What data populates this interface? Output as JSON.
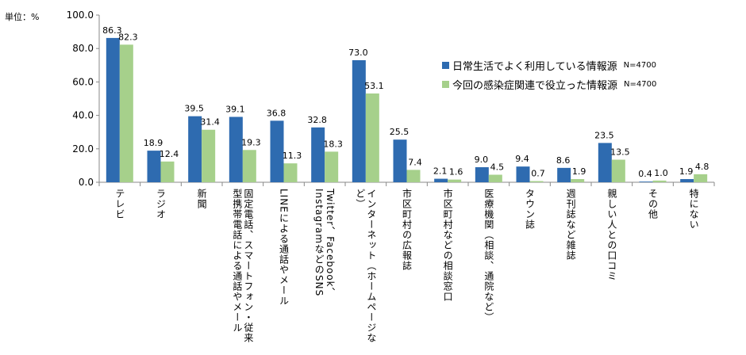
{
  "unit_label": "単位：%",
  "chart_data": {
    "type": "bar",
    "categories": [
      "テレビ",
      "ラジオ",
      "新聞",
      "固定電話、スマートフォン・従来型携帯電話による通話やメール",
      "LINEによる通話やメール",
      "Twitter、Facebook、InstagramなどのSNS",
      "インターネット（ホームページなど）",
      "市区町村の広報誌",
      "市区町村などの相談窓口",
      "医療機関（相談、通院など）",
      "タウン誌",
      "週刊誌など雑誌",
      "親しい人との口コミ",
      "その他",
      "特にない"
    ],
    "series": [
      {
        "name": "日常生活でよく利用している情報源",
        "n_label": "N=4700",
        "color": "#2e6bb0",
        "values": [
          86.3,
          18.9,
          39.5,
          39.1,
          36.8,
          32.8,
          73.0,
          25.5,
          2.1,
          9.0,
          9.4,
          8.6,
          23.5,
          0.4,
          1.9
        ]
      },
      {
        "name": "今回の感染症関連で役立った情報源",
        "n_label": "N=4700",
        "color": "#a6d08b",
        "values": [
          82.3,
          12.4,
          31.4,
          19.3,
          11.3,
          18.3,
          53.1,
          7.4,
          1.6,
          4.5,
          0.7,
          1.9,
          13.5,
          1.0,
          4.8
        ]
      }
    ],
    "yticks": [
      "0.0",
      "20.0",
      "40.0",
      "60.0",
      "80.0",
      "100.0"
    ],
    "ylim": [
      0,
      100
    ],
    "grid": false,
    "legend": "right"
  }
}
